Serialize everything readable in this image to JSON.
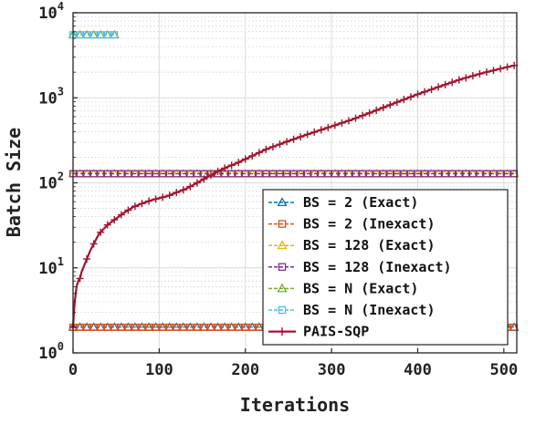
{
  "chart_data": {
    "type": "line",
    "xlabel": "Iterations",
    "ylabel": "Batch Size",
    "xlim": [
      0,
      515
    ],
    "ylim": [
      1,
      10000
    ],
    "yscale": "log",
    "grid": true,
    "legend_position": "bottom-right",
    "x_ticks": [
      "0",
      "100",
      "200",
      "300",
      "400",
      "500"
    ],
    "y_ticks": [
      {
        "value": 1,
        "base": "10",
        "exp": "0"
      },
      {
        "value": 10,
        "base": "10",
        "exp": "1"
      },
      {
        "value": 100,
        "base": "10",
        "exp": "2"
      },
      {
        "value": 1000,
        "base": "10",
        "exp": "3"
      },
      {
        "value": 10000,
        "base": "10",
        "exp": "4"
      }
    ],
    "series": [
      {
        "name": "BS = 2 (Exact)",
        "color": "#0072BD",
        "marker": "triangle",
        "x_start": 0,
        "x_end": 515,
        "x_step": 8,
        "y": 2
      },
      {
        "name": "BS = 2 (Inexact)",
        "color": "#D95319",
        "marker": "square",
        "x_start": 0,
        "x_end": 515,
        "x_step": 8,
        "y": 2
      },
      {
        "name": "BS = 128 (Exact)",
        "color": "#EDB120",
        "marker": "triangle",
        "x_start": 0,
        "x_end": 515,
        "x_step": 8,
        "y": 128
      },
      {
        "name": "BS = 128 (Inexact)",
        "color": "#7E2F8E",
        "marker": "square",
        "x_start": 0,
        "x_end": 515,
        "x_step": 8,
        "y": 128
      },
      {
        "name": "BS = N (Exact)",
        "color": "#77AC30",
        "marker": "triangle",
        "x_start": 0,
        "x_end": 52,
        "x_step": 8,
        "y": 5500
      },
      {
        "name": "BS = N (Inexact)",
        "color": "#4DBEEE",
        "marker": "square",
        "x_start": 0,
        "x_end": 52,
        "x_step": 8,
        "y": 5500
      },
      {
        "name": "PAIS-SQP",
        "color": "#A2142F",
        "marker": "plus",
        "x": [
          0,
          1,
          2,
          4,
          6,
          8,
          10,
          15,
          20,
          25,
          30,
          40,
          50,
          60,
          70,
          80,
          90,
          100,
          110,
          120,
          130,
          140,
          150,
          160,
          170,
          180,
          190,
          200,
          225,
          250,
          275,
          300,
          325,
          350,
          375,
          400,
          425,
          450,
          475,
          500,
          512
        ],
        "y": [
          2,
          3,
          4,
          6,
          7,
          7.5,
          9,
          12,
          16,
          20,
          25,
          32,
          38,
          45,
          52,
          57,
          62,
          66,
          70,
          77,
          84,
          95,
          108,
          123,
          140,
          155,
          170,
          190,
          250,
          310,
          380,
          460,
          560,
          700,
          880,
          1100,
          1350,
          1650,
          1950,
          2250,
          2400
        ]
      }
    ]
  }
}
